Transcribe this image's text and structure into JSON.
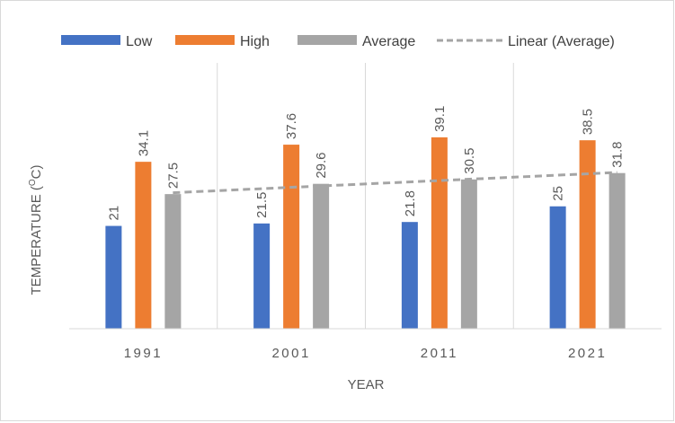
{
  "chart_data": {
    "type": "bar",
    "title": "",
    "xlabel": "YEAR",
    "ylabel_main": "TEMPERATURE  (",
    "ylabel_sup": "O",
    "ylabel_unit": "C)",
    "categories": [
      "1991",
      "2001",
      "2011",
      "2021"
    ],
    "series": [
      {
        "name": "Low",
        "values": [
          21,
          21.5,
          21.8,
          25
        ],
        "color": "#4472c4"
      },
      {
        "name": "High",
        "values": [
          34.1,
          37.6,
          39.1,
          38.5
        ],
        "color": "#ed7d31"
      },
      {
        "name": "Average",
        "values": [
          27.5,
          29.6,
          30.5,
          31.8
        ],
        "color": "#a5a5a5"
      }
    ],
    "trendline": {
      "name": "Linear (Average)",
      "of_series": "Average",
      "type": "linear",
      "color": "#a5a5a5",
      "style": "dashed"
    },
    "ylim": [
      0,
      45
    ],
    "grid": false,
    "vertical_category_separators": true,
    "data_labels": true,
    "legend_position": "top",
    "y_axis_visible": false
  }
}
